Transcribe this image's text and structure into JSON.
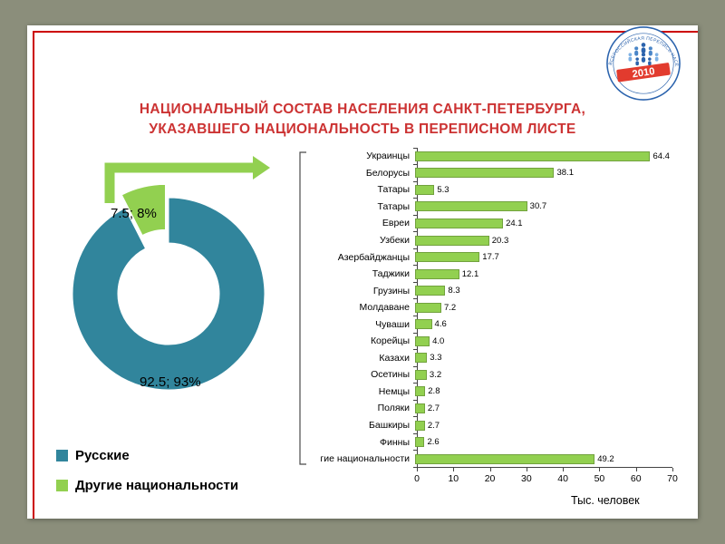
{
  "title": {
    "line1": "НАЦИОНАЛЬНЫЙ СОСТАВ НАСЕЛЕНИЯ САНКТ-ПЕТЕРБУРГА,",
    "line2": "УКАЗАВШЕГО НАЦИОНАЛЬНОСТЬ В ПЕРЕПИСНОМ ЛИСТЕ"
  },
  "logo": {
    "year": "2010",
    "ring_text": "ВСЕРОССИЙСКАЯ ПЕРЕПИСЬ НАСЕЛЕНИЯ"
  },
  "colors": {
    "background": "#8b8e7b",
    "frame_red": "#cc0000",
    "title_red": "#cc3333",
    "teal": "#31859c",
    "green": "#92d050"
  },
  "legend": {
    "items": [
      {
        "label": "Русские",
        "color": "#31859c"
      },
      {
        "label": "Другие национальности",
        "color": "#92d050"
      }
    ]
  },
  "chart_data": [
    {
      "type": "pie",
      "subtype": "exploded-donut",
      "labels": [
        "Русские",
        "Другие национальности"
      ],
      "values": [
        92.5,
        7.5
      ],
      "data_labels": [
        "92.5; 93%",
        "7.5; 8%"
      ],
      "colors": [
        "#31859c",
        "#92d050"
      ],
      "exploded_index": 1,
      "legend_position": "bottom-left"
    },
    {
      "type": "bar",
      "orientation": "horizontal",
      "categories": [
        "Украинцы",
        "Белорусы",
        "Татары",
        "Татары",
        "Евреи",
        "Узбеки",
        "Азербайджанцы",
        "Таджики",
        "Грузины",
        "Молдаване",
        "Чуваши",
        "Корейцы",
        "Казахи",
        "Осетины",
        "Немцы",
        "Поляки",
        "Башкиры",
        "Финны",
        "гие национальности"
      ],
      "values": [
        64.4,
        38.1,
        5.3,
        30.7,
        24.1,
        20.3,
        17.7,
        12.1,
        8.3,
        7.2,
        4.6,
        4.0,
        3.3,
        3.2,
        2.8,
        2.7,
        2.7,
        2.6,
        49.2
      ],
      "xlabel": "Тыс. человек",
      "xlim": [
        0,
        70
      ],
      "xticks": [
        0,
        10,
        20,
        30,
        40,
        50,
        60,
        70
      ],
      "bar_color": "#92d050",
      "grid": false
    }
  ]
}
